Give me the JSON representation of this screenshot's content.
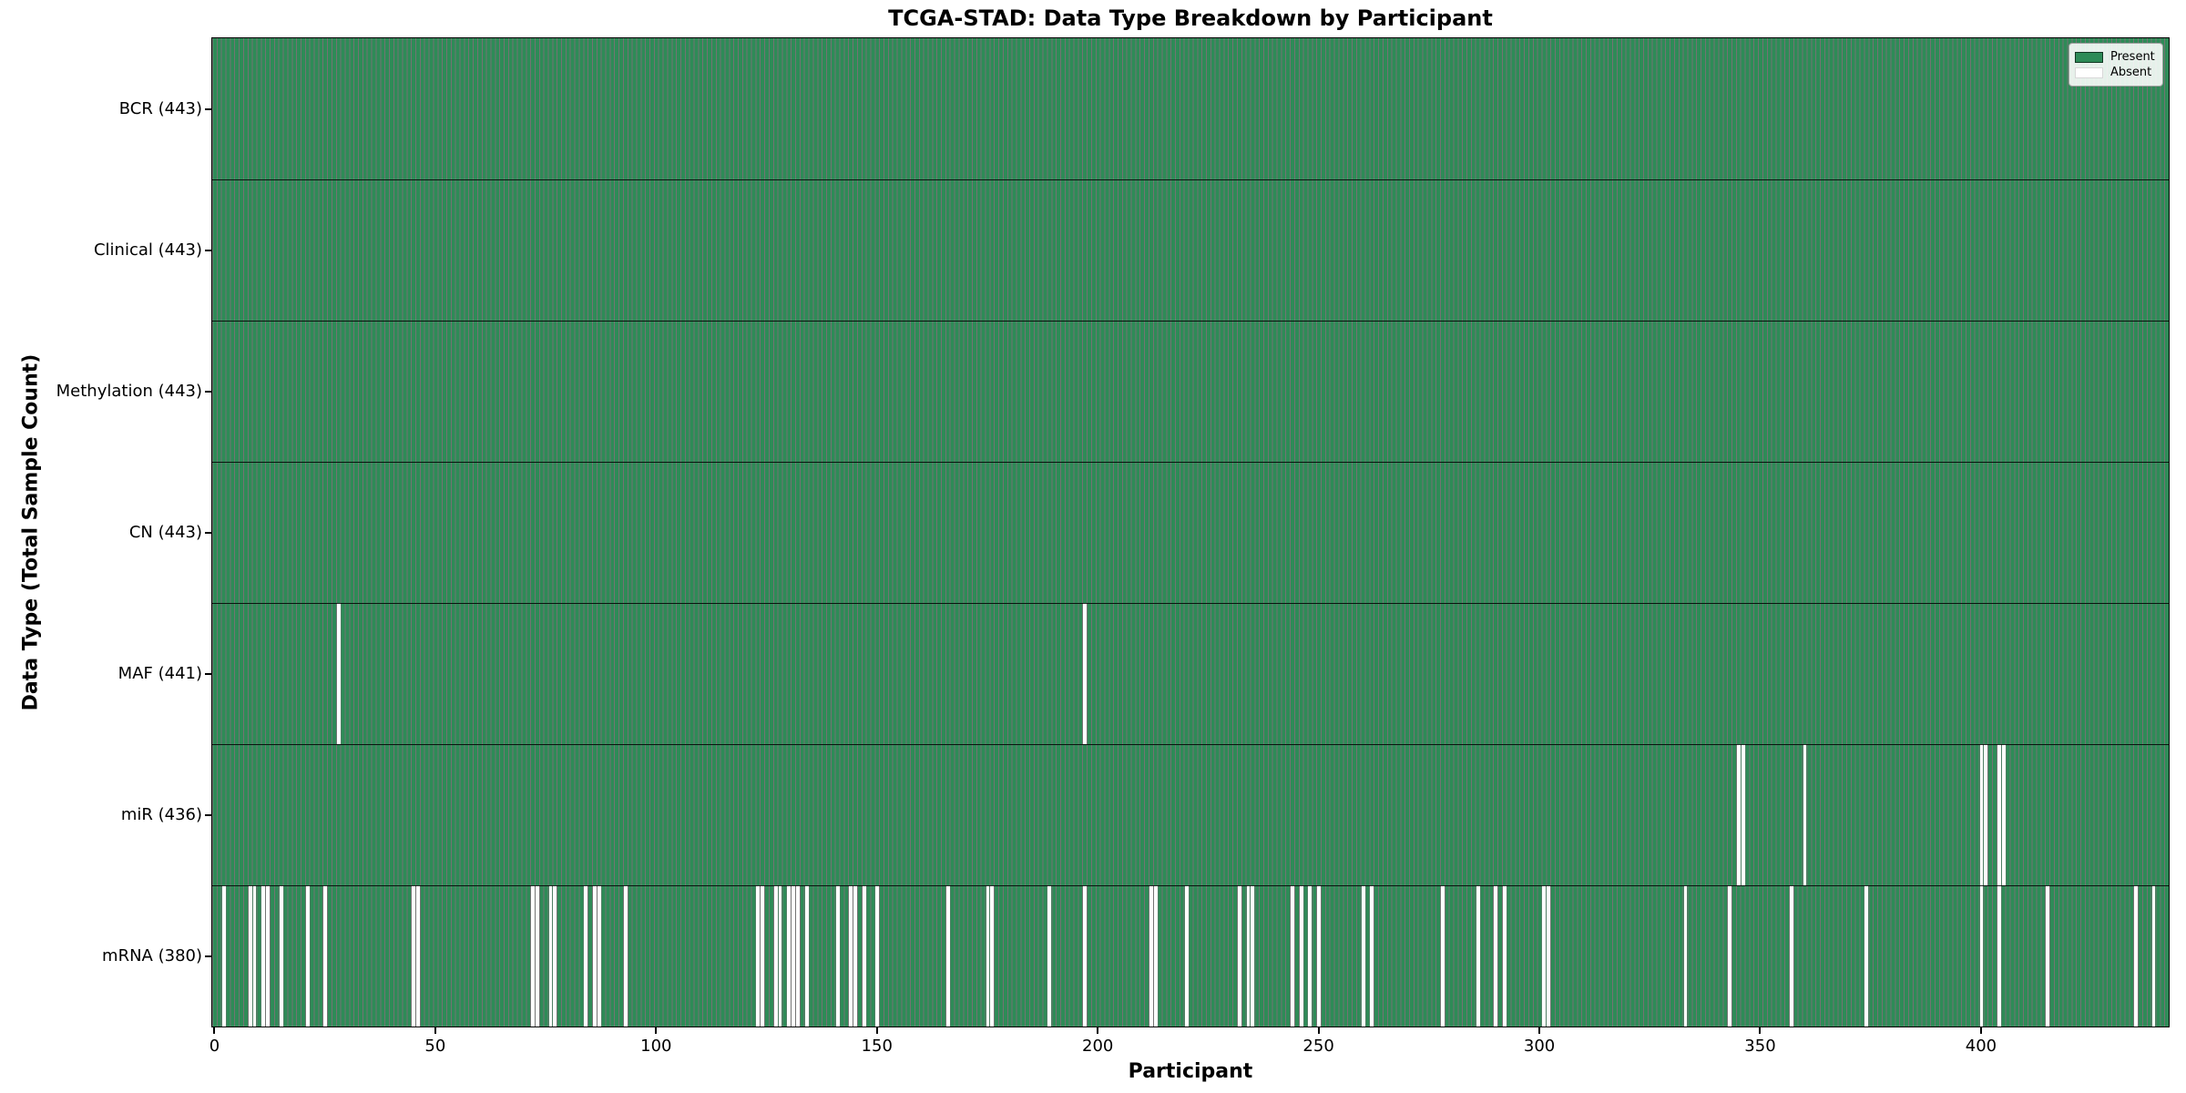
{
  "figure": {
    "title": "TCGA-STAD: Data Type Breakdown by Participant",
    "xlabel": "Participant",
    "ylabel": "Data Type (Total Sample Count)"
  },
  "legend": {
    "present_label": "Present",
    "absent_label": "Absent"
  },
  "chart_data": {
    "type": "heatmap",
    "title": "TCGA-STAD: Data Type Breakdown by Participant",
    "xlabel": "Participant",
    "ylabel": "Data Type (Total Sample Count)",
    "n_participants": 443,
    "xlim": [
      -0.5,
      442.5
    ],
    "x_ticks": [
      0,
      50,
      100,
      150,
      200,
      250,
      300,
      350,
      400
    ],
    "grid": false,
    "legend_position": "upper right",
    "legend_entries": [
      {
        "label": "Present",
        "color": "#2e8b57"
      },
      {
        "label": "Absent",
        "color": "#ffffff"
      }
    ],
    "colors": {
      "present": "#2e8b57",
      "absent": "#ffffff",
      "bar_edge": "rgba(0,0,0,0.55)"
    },
    "rows": [
      {
        "label": "BCR (443)",
        "name": "BCR",
        "total": 443,
        "absent_participants": []
      },
      {
        "label": "Clinical (443)",
        "name": "Clinical",
        "total": 443,
        "absent_participants": []
      },
      {
        "label": "Methylation (443)",
        "name": "Methylation",
        "total": 443,
        "absent_participants": []
      },
      {
        "label": "CN (443)",
        "name": "CN",
        "total": 443,
        "absent_participants": []
      },
      {
        "label": "MAF (441)",
        "name": "MAF",
        "total": 441,
        "absent_participants": [
          28,
          197
        ]
      },
      {
        "label": "miR (436)",
        "name": "miR",
        "total": 436,
        "absent_participants": [
          345,
          346,
          360,
          400,
          401,
          404,
          405
        ]
      },
      {
        "label": "mRNA (380)",
        "name": "mRNA",
        "total": 380,
        "absent_participants": [
          2,
          8,
          9,
          11,
          12,
          15,
          21,
          25,
          45,
          46,
          72,
          73,
          76,
          77,
          84,
          86,
          87,
          93,
          123,
          124,
          127,
          128,
          130,
          131,
          132,
          134,
          141,
          144,
          145,
          147,
          150,
          166,
          175,
          176,
          189,
          197,
          212,
          213,
          220,
          232,
          234,
          235,
          244,
          246,
          248,
          250,
          260,
          262,
          278,
          286,
          290,
          292,
          301,
          302,
          333,
          343,
          357,
          374,
          400,
          404,
          415,
          435,
          439
        ]
      }
    ]
  }
}
